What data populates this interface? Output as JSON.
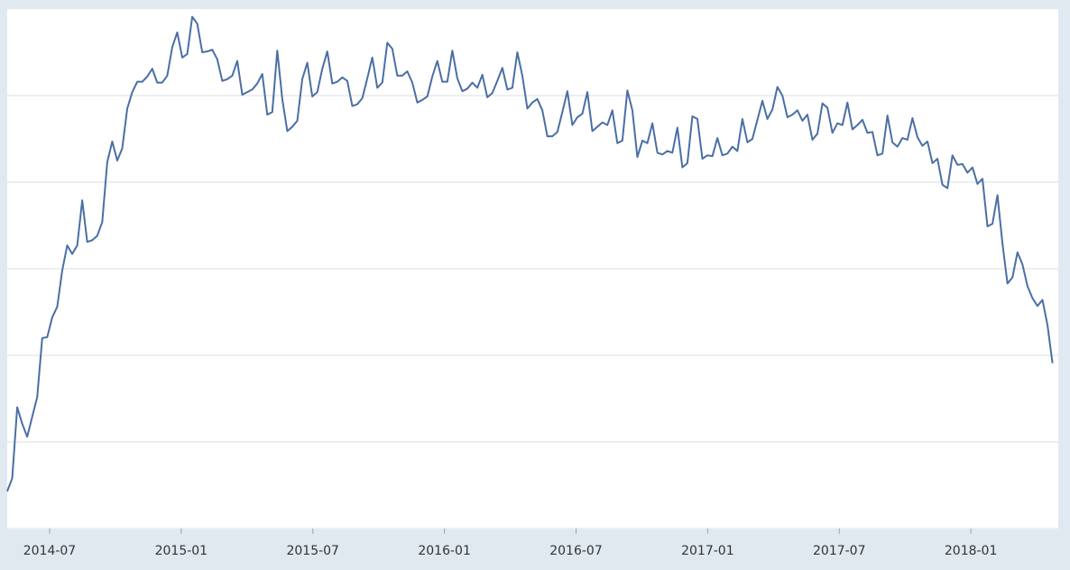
{
  "chart_data": {
    "type": "line",
    "color": "#4a6fa5",
    "grid": true,
    "xlim": [
      2014.339,
      2018.332
    ],
    "xticks": [
      {
        "value": 2014.5,
        "label": "2014-07"
      },
      {
        "value": 2015.0,
        "label": "2015-01"
      },
      {
        "value": 2015.5,
        "label": "2015-07"
      },
      {
        "value": 2016.0,
        "label": "2016-01"
      },
      {
        "value": 2016.5,
        "label": "2016-07"
      },
      {
        "value": 2017.0,
        "label": "2017-01"
      },
      {
        "value": 2017.5,
        "label": "2017-07"
      },
      {
        "value": 2018.0,
        "label": "2018-01"
      }
    ],
    "ylim": [
      0,
      6
    ],
    "yticks": [
      0,
      1,
      2,
      3,
      4,
      5
    ],
    "x": [
      2014.339,
      2014.358,
      2014.377,
      2014.396,
      2014.415,
      2014.434,
      2014.453,
      2014.472,
      2014.491,
      2014.51,
      2014.529,
      2014.548,
      2014.567,
      2014.586,
      2014.605,
      2014.624,
      2014.643,
      2014.662,
      2014.681,
      2014.7,
      2014.719,
      2014.738,
      2014.757,
      2014.776,
      2014.795,
      2014.814,
      2014.833,
      2014.852,
      2014.871,
      2014.89,
      2014.909,
      2014.928,
      2014.947,
      2014.966,
      2014.985,
      2015.004,
      2015.023,
      2015.042,
      2015.061,
      2015.08,
      2015.099,
      2015.118,
      2015.137,
      2015.156,
      2015.175,
      2015.194,
      2015.213,
      2015.232,
      2015.251,
      2015.27,
      2015.289,
      2015.308,
      2015.327,
      2015.346,
      2015.365,
      2015.384,
      2015.403,
      2015.422,
      2015.441,
      2015.46,
      2015.479,
      2015.498,
      2015.517,
      2015.536,
      2015.555,
      2015.574,
      2015.593,
      2015.612,
      2015.631,
      2015.65,
      2015.669,
      2015.688,
      2015.707,
      2015.726,
      2015.745,
      2015.764,
      2015.783,
      2015.802,
      2015.821,
      2015.84,
      2015.859,
      2015.878,
      2015.897,
      2015.916,
      2015.935,
      2015.954,
      2015.973,
      2015.992,
      2016.011,
      2016.03,
      2016.049,
      2016.068,
      2016.087,
      2016.106,
      2016.125,
      2016.144,
      2016.163,
      2016.182,
      2016.201,
      2016.22,
      2016.239,
      2016.258,
      2016.277,
      2016.296,
      2016.315,
      2016.334,
      2016.353,
      2016.372,
      2016.391,
      2016.41,
      2016.429,
      2016.448,
      2016.467,
      2016.486,
      2016.505,
      2016.524,
      2016.543,
      2016.562,
      2016.581,
      2016.6,
      2016.619,
      2016.638,
      2016.657,
      2016.676,
      2016.695,
      2016.714,
      2016.733,
      2016.752,
      2016.771,
      2016.79,
      2016.809,
      2016.828,
      2016.847,
      2016.866,
      2016.885,
      2016.904,
      2016.923,
      2016.942,
      2016.961,
      2016.98,
      2016.999,
      2017.018,
      2017.037,
      2017.056,
      2017.075,
      2017.094,
      2017.113,
      2017.132,
      2017.151,
      2017.17,
      2017.189,
      2017.208,
      2017.227,
      2017.246,
      2017.265,
      2017.284,
      2017.303,
      2017.322,
      2017.341,
      2017.36,
      2017.379,
      2017.398,
      2017.417,
      2017.436,
      2017.455,
      2017.474,
      2017.493,
      2017.512,
      2017.531,
      2017.55,
      2017.569,
      2017.588,
      2017.607,
      2017.626,
      2017.645,
      2017.664,
      2017.683,
      2017.702,
      2017.721,
      2017.74,
      2017.759,
      2017.778,
      2017.797,
      2017.816,
      2017.835,
      2017.854,
      2017.873,
      2017.892,
      2017.911,
      2017.93,
      2017.949,
      2017.968,
      2017.987,
      2018.006,
      2018.025,
      2018.044,
      2018.063,
      2018.082,
      2018.101,
      2018.12,
      2018.139,
      2018.158,
      2018.177,
      2018.196,
      2018.215,
      2018.234,
      2018.253,
      2018.272,
      2018.291,
      2018.31
    ],
    "values": [
      0.43,
      0.58,
      1.4,
      1.21,
      1.06,
      1.29,
      1.52,
      2.2,
      2.21,
      2.44,
      2.56,
      2.98,
      3.27,
      3.17,
      3.27,
      3.79,
      3.31,
      3.33,
      3.38,
      3.54,
      4.23,
      4.47,
      4.25,
      4.39,
      4.85,
      5.04,
      5.16,
      5.16,
      5.22,
      5.31,
      5.15,
      5.15,
      5.23,
      5.56,
      5.73,
      5.44,
      5.48,
      5.91,
      5.83,
      5.5,
      5.51,
      5.53,
      5.42,
      5.17,
      5.19,
      5.23,
      5.4,
      5.01,
      5.04,
      5.07,
      5.14,
      5.25,
      4.78,
      4.81,
      5.52,
      4.96,
      4.59,
      4.64,
      4.71,
      5.19,
      5.38,
      4.99,
      5.04,
      5.31,
      5.51,
      5.14,
      5.16,
      5.21,
      5.17,
      4.88,
      4.9,
      4.97,
      5.2,
      5.44,
      5.09,
      5.15,
      5.61,
      5.54,
      5.23,
      5.23,
      5.28,
      5.15,
      4.92,
      4.95,
      4.99,
      5.22,
      5.4,
      5.16,
      5.16,
      5.52,
      5.2,
      5.05,
      5.08,
      5.15,
      5.09,
      5.24,
      4.98,
      5.03,
      5.17,
      5.32,
      5.07,
      5.09,
      5.5,
      5.23,
      4.85,
      4.92,
      4.96,
      4.83,
      4.53,
      4.53,
      4.58,
      4.81,
      5.05,
      4.66,
      4.75,
      4.79,
      5.04,
      4.59,
      4.64,
      4.69,
      4.66,
      4.83,
      4.45,
      4.48,
      5.06,
      4.83,
      4.29,
      4.48,
      4.45,
      4.68,
      4.34,
      4.32,
      4.36,
      4.34,
      4.63,
      4.17,
      4.22,
      4.76,
      4.73,
      4.27,
      4.31,
      4.3,
      4.51,
      4.31,
      4.33,
      4.41,
      4.36,
      4.73,
      4.46,
      4.5,
      4.72,
      4.94,
      4.73,
      4.84,
      5.1,
      5.0,
      4.75,
      4.78,
      4.83,
      4.71,
      4.78,
      4.49,
      4.56,
      4.91,
      4.86,
      4.57,
      4.68,
      4.66,
      4.92,
      4.61,
      4.66,
      4.72,
      4.57,
      4.58,
      4.31,
      4.33,
      4.77,
      4.46,
      4.41,
      4.51,
      4.49,
      4.74,
      4.52,
      4.42,
      4.47,
      4.22,
      4.27,
      3.97,
      3.93,
      4.31,
      4.2,
      4.21,
      4.11,
      4.17,
      3.98,
      4.04,
      3.49,
      3.52,
      3.85,
      3.29,
      2.83,
      2.9,
      3.19,
      3.05,
      2.8,
      2.66,
      2.57,
      2.64,
      2.35,
      1.91
    ]
  }
}
